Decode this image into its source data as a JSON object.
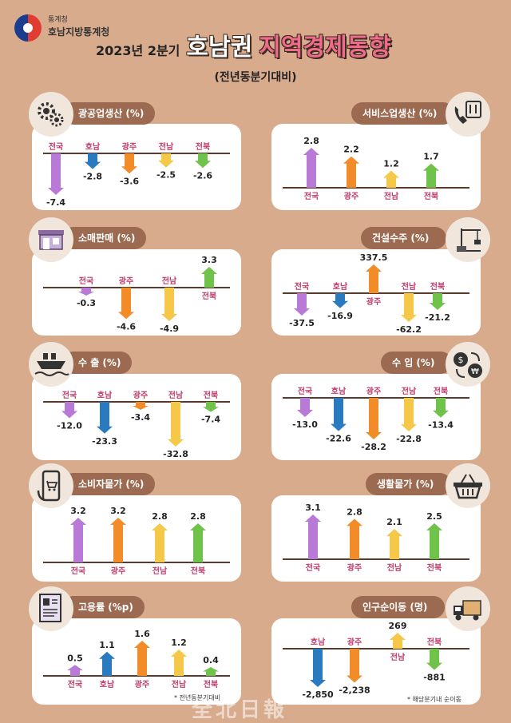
{
  "header": {
    "org_small": "통계청",
    "org_name": "호남지방통계청",
    "title_year": "2023년 2분기",
    "title_main": "호남권",
    "title_accent": "지역경제동향",
    "subtitle": "(전년동분기대비)"
  },
  "colors": {
    "background": "#d8ab8d",
    "pill": "#9b6a50",
    "label_text": "#c0396b",
    "baseline": "#5a3a2a",
    "series": {
      "전국": "#b87ad6",
      "호남": "#2a7ac0",
      "광주": "#f28c28",
      "전남": "#f5c84a",
      "전북": "#6fc24a"
    }
  },
  "footnotes": {
    "employment": "* 전년동분기대비",
    "migration": "* 해당분기내 순이동"
  },
  "watermark": "全北日報",
  "chart_data": [
    {
      "type": "bar",
      "title": "광공업생산 (%)",
      "icon": "gears-icon",
      "categories": [
        "전국",
        "호남",
        "광주",
        "전남",
        "전북"
      ],
      "values": [
        -7.4,
        -2.8,
        -3.6,
        -2.5,
        -2.6
      ],
      "labels": [
        "-7.4",
        "-2.8",
        "-3.6",
        "-2.5",
        "-2.6"
      ],
      "ylim": [
        -8,
        0
      ]
    },
    {
      "type": "bar",
      "title": "서비스업생산 (%)",
      "icon": "phone-service-icon",
      "categories": [
        "전국",
        "광주",
        "전남",
        "전북"
      ],
      "values": [
        2.8,
        2.2,
        1.2,
        1.7
      ],
      "labels": [
        "2.8",
        "2.2",
        "1.2",
        "1.7"
      ],
      "ylim": [
        0,
        3
      ]
    },
    {
      "type": "bar",
      "title": "소매판매 (%)",
      "icon": "store-icon",
      "categories": [
        "전국",
        "광주",
        "전남",
        "전북"
      ],
      "values": [
        -0.3,
        -4.6,
        -4.9,
        3.3
      ],
      "labels": [
        "-0.3",
        "-4.6",
        "-4.9",
        "3.3"
      ],
      "ylim": [
        -5,
        3.5
      ]
    },
    {
      "type": "bar",
      "title": "건설수주 (%)",
      "icon": "crane-icon",
      "categories": [
        "전국",
        "호남",
        "광주",
        "전남",
        "전북"
      ],
      "values": [
        -37.5,
        -16.9,
        337.5,
        -62.2,
        -21.2
      ],
      "labels": [
        "-37.5",
        "-16.9",
        "337.5",
        "-62.2",
        "-21.2"
      ],
      "ylim": [
        -70,
        340
      ]
    },
    {
      "type": "bar",
      "title": "수 출 (%)",
      "icon": "ship-icon",
      "categories": [
        "전국",
        "호남",
        "광주",
        "전남",
        "전북"
      ],
      "values": [
        -12.0,
        -23.3,
        -3.4,
        -32.8,
        -7.4
      ],
      "labels": [
        "-12.0",
        "-23.3",
        "-3.4",
        "-32.8",
        "-7.4"
      ],
      "ylim": [
        -35,
        0
      ]
    },
    {
      "type": "bar",
      "title": "수 입 (%)",
      "icon": "money-exchange-icon",
      "categories": [
        "전국",
        "호남",
        "광주",
        "전남",
        "전북"
      ],
      "values": [
        -13.0,
        -22.6,
        -28.2,
        -22.8,
        -13.4
      ],
      "labels": [
        "-13.0",
        "-22.6",
        "-28.2",
        "-22.8",
        "-13.4"
      ],
      "ylim": [
        -30,
        0
      ]
    },
    {
      "type": "bar",
      "title": "소비자물가 (%)",
      "icon": "shopping-phone-icon",
      "categories": [
        "전국",
        "광주",
        "전남",
        "전북"
      ],
      "values": [
        3.2,
        3.2,
        2.8,
        2.8
      ],
      "labels": [
        "3.2",
        "3.2",
        "2.8",
        "2.8"
      ],
      "ylim": [
        0,
        3.3
      ]
    },
    {
      "type": "bar",
      "title": "생활물가 (%)",
      "icon": "basket-icon",
      "categories": [
        "전국",
        "광주",
        "전남",
        "전북"
      ],
      "values": [
        3.1,
        2.8,
        2.1,
        2.5
      ],
      "labels": [
        "3.1",
        "2.8",
        "2.1",
        "2.5"
      ],
      "ylim": [
        0,
        3.2
      ]
    },
    {
      "type": "bar",
      "title": "고용률 (%p)",
      "icon": "document-icon",
      "categories": [
        "전국",
        "호남",
        "광주",
        "전남",
        "전북"
      ],
      "values": [
        0.5,
        1.1,
        1.6,
        1.2,
        0.4
      ],
      "labels": [
        "0.5",
        "1.1",
        "1.6",
        "1.2",
        "0.4"
      ],
      "ylim": [
        0,
        1.7
      ]
    },
    {
      "type": "bar",
      "title": "인구순이동 (명)",
      "icon": "moving-truck-icon",
      "categories": [
        "호남",
        "광주",
        "전남",
        "전북"
      ],
      "values": [
        -2850,
        -2238,
        269,
        -881
      ],
      "labels": [
        "-2,850",
        "-2,238",
        "269",
        "-881"
      ],
      "ylim": [
        -3000,
        300
      ]
    }
  ]
}
